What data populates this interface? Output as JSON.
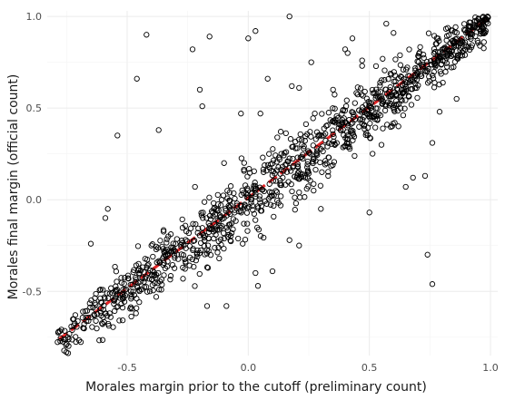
{
  "chart_data": {
    "type": "scatter",
    "title": "",
    "xlabel": "Morales margin prior to the cutoff (preliminary count)",
    "ylabel": "Morales final margin (official count)",
    "xlim": [
      -0.83,
      1.03
    ],
    "ylim": [
      -0.85,
      1.03
    ],
    "x_ticks": [
      -0.5,
      0.0,
      0.5,
      1.0
    ],
    "x_tick_labels": [
      "-0.5",
      "0.0",
      "0.5",
      "1.0"
    ],
    "y_ticks": [
      -0.5,
      0.0,
      0.5,
      1.0
    ],
    "y_tick_labels": [
      "-0.5",
      "0.0",
      "0.5",
      "1.0"
    ],
    "grid": true,
    "legend": "none",
    "colors": {
      "points": "#000000",
      "fit_line": "#e31a1c",
      "grid": "#ebebeb"
    },
    "fit_line": {
      "x": [
        -0.78,
        0.99
      ],
      "y": [
        -0.76,
        0.99
      ]
    },
    "outliers": [
      {
        "x": -0.42,
        "y": 0.9
      },
      {
        "x": -0.46,
        "y": 0.66
      },
      {
        "x": -0.54,
        "y": 0.35
      },
      {
        "x": -0.37,
        "y": 0.38
      },
      {
        "x": -0.23,
        "y": 0.82
      },
      {
        "x": -0.16,
        "y": 0.89
      },
      {
        "x": -0.2,
        "y": 0.6
      },
      {
        "x": -0.19,
        "y": 0.51
      },
      {
        "x": 0.03,
        "y": 0.92
      },
      {
        "x": 0.0,
        "y": 0.88
      },
      {
        "x": 0.08,
        "y": 0.66
      },
      {
        "x": 0.17,
        "y": 1.0
      },
      {
        "x": 0.18,
        "y": 0.62
      },
      {
        "x": 0.21,
        "y": 0.61
      },
      {
        "x": 0.05,
        "y": 0.47
      },
      {
        "x": -0.03,
        "y": 0.47
      },
      {
        "x": 0.26,
        "y": 0.75
      },
      {
        "x": 0.4,
        "y": 0.82
      },
      {
        "x": 0.41,
        "y": 0.8
      },
      {
        "x": 0.43,
        "y": 0.88
      },
      {
        "x": 0.47,
        "y": 0.76
      },
      {
        "x": 0.47,
        "y": 0.73
      },
      {
        "x": 0.57,
        "y": 0.96
      },
      {
        "x": 0.6,
        "y": 0.91
      },
      {
        "x": -0.58,
        "y": -0.05
      },
      {
        "x": -0.59,
        "y": -0.1
      },
      {
        "x": -0.65,
        "y": -0.24
      },
      {
        "x": -0.12,
        "y": -0.32
      },
      {
        "x": -0.27,
        "y": -0.37
      },
      {
        "x": -0.17,
        "y": -0.58
      },
      {
        "x": -0.09,
        "y": -0.58
      },
      {
        "x": 0.04,
        "y": -0.47
      },
      {
        "x": 0.03,
        "y": -0.4
      },
      {
        "x": 0.1,
        "y": -0.39
      },
      {
        "x": 0.17,
        "y": -0.22
      },
      {
        "x": 0.21,
        "y": -0.25
      },
      {
        "x": 0.5,
        "y": -0.07
      },
      {
        "x": 0.65,
        "y": 0.07
      },
      {
        "x": 0.68,
        "y": 0.12
      },
      {
        "x": 0.73,
        "y": 0.13
      },
      {
        "x": 0.76,
        "y": 0.31
      },
      {
        "x": 0.76,
        "y": -0.46
      },
      {
        "x": 0.74,
        "y": -0.3
      },
      {
        "x": 0.79,
        "y": 0.48
      },
      {
        "x": 0.86,
        "y": 0.55
      },
      {
        "x": 0.33,
        "y": 0.13
      },
      {
        "x": 0.27,
        "y": 0.05
      },
      {
        "x": -0.33,
        "y": -0.2
      },
      {
        "x": -0.4,
        "y": -0.25
      },
      {
        "x": 0.06,
        "y": 0.23
      },
      {
        "x": 0.12,
        "y": 0.34
      },
      {
        "x": -0.1,
        "y": 0.2
      },
      {
        "x": 0.35,
        "y": 0.6
      },
      {
        "x": 0.55,
        "y": 0.3
      },
      {
        "x": 0.62,
        "y": 0.4
      },
      {
        "x": 0.3,
        "y": -0.05
      },
      {
        "x": -0.22,
        "y": 0.07
      }
    ],
    "main_cloud": {
      "n": 1150,
      "x_range": [
        -0.79,
        0.99
      ],
      "slope": 0.985,
      "intercept": -0.005,
      "spread": 0.075
    }
  }
}
